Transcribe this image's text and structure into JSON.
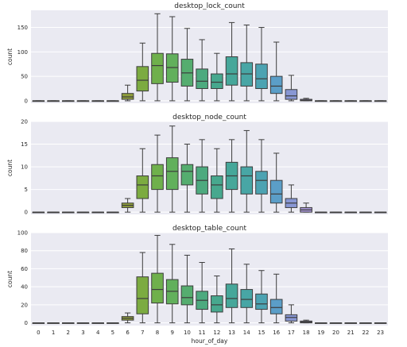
{
  "chart_data": {
    "type": "boxplot",
    "xlabel": "hour_of_day",
    "categories": [
      "0",
      "1",
      "2",
      "3",
      "4",
      "5",
      "6",
      "7",
      "8",
      "9",
      "10",
      "11",
      "12",
      "13",
      "14",
      "15",
      "16",
      "17",
      "18",
      "19",
      "20",
      "21",
      "22",
      "23"
    ],
    "palette": [
      "#d8d8d4",
      "#d8d8d4",
      "#d8d8d4",
      "#d8d8d4",
      "#d8d8d4",
      "#d8d8d4",
      "#8f9e3a",
      "#7cab41",
      "#6fb04c",
      "#62b05c",
      "#55ad6f",
      "#4daa7f",
      "#47a88e",
      "#46a79a",
      "#48a6a5",
      "#4ca3b2",
      "#5b9ec8",
      "#8897d4",
      "#a796d6",
      "#d8d8d4",
      "#d8d8d4",
      "#d8d8d4",
      "#d8d8d4",
      "#d8d8d4"
    ],
    "panels": [
      {
        "title": "desktop_lock_count",
        "ylabel": "count",
        "ylim": [
          -5,
          185
        ],
        "yticks": [
          0,
          50,
          100,
          150
        ],
        "boxes": [
          [
            0,
            0,
            0,
            0,
            0
          ],
          [
            0,
            0,
            0,
            0,
            0
          ],
          [
            0,
            0,
            0,
            0,
            0
          ],
          [
            0,
            0,
            0,
            0,
            0
          ],
          [
            0,
            0,
            0,
            0,
            0
          ],
          [
            0,
            0,
            0,
            0,
            0
          ],
          [
            0,
            3,
            8,
            15,
            32
          ],
          [
            0,
            20,
            42,
            70,
            118
          ],
          [
            0,
            35,
            72,
            97,
            178
          ],
          [
            0,
            38,
            68,
            96,
            172
          ],
          [
            0,
            30,
            57,
            85,
            148
          ],
          [
            0,
            25,
            40,
            65,
            125
          ],
          [
            0,
            25,
            38,
            55,
            97
          ],
          [
            0,
            32,
            55,
            90,
            160
          ],
          [
            0,
            30,
            55,
            78,
            155
          ],
          [
            0,
            25,
            45,
            75,
            150
          ],
          [
            0,
            15,
            30,
            50,
            120
          ],
          [
            0,
            3,
            10,
            23,
            52
          ],
          [
            0,
            0,
            1,
            3,
            5
          ],
          [
            0,
            0,
            0,
            0,
            0
          ],
          [
            0,
            0,
            0,
            0,
            0
          ],
          [
            0,
            0,
            0,
            0,
            0
          ],
          [
            0,
            0,
            0,
            0,
            0
          ],
          [
            0,
            0,
            0,
            0,
            0
          ]
        ]
      },
      {
        "title": "desktop_node_count",
        "ylabel": "count",
        "ylim": [
          -0.5,
          20
        ],
        "yticks": [
          0,
          5,
          10,
          15,
          20
        ],
        "boxes": [
          [
            0,
            0,
            0,
            0,
            0
          ],
          [
            0,
            0,
            0,
            0,
            0
          ],
          [
            0,
            0,
            0,
            0,
            0
          ],
          [
            0,
            0,
            0,
            0,
            0
          ],
          [
            0,
            0,
            0,
            0,
            0
          ],
          [
            0,
            0,
            0,
            0,
            0
          ],
          [
            0,
            1,
            1.5,
            2,
            3
          ],
          [
            0,
            3,
            6,
            8,
            14
          ],
          [
            0,
            5,
            8,
            10.5,
            17
          ],
          [
            0,
            5,
            9,
            12,
            19
          ],
          [
            0,
            6,
            9,
            10.5,
            15
          ],
          [
            0,
            4,
            7,
            10,
            16
          ],
          [
            0,
            3,
            6,
            8,
            14
          ],
          [
            0,
            5,
            8,
            11,
            16
          ],
          [
            0,
            4,
            8,
            10,
            18
          ],
          [
            0,
            4,
            7,
            9,
            16
          ],
          [
            0,
            2,
            4,
            7,
            13
          ],
          [
            0,
            1,
            2,
            3,
            6
          ],
          [
            0,
            0,
            0.5,
            1,
            2
          ],
          [
            0,
            0,
            0,
            0,
            0
          ],
          [
            0,
            0,
            0,
            0,
            0
          ],
          [
            0,
            0,
            0,
            0,
            0
          ],
          [
            0,
            0,
            0,
            0,
            0
          ],
          [
            0,
            0,
            0,
            0,
            0
          ]
        ]
      },
      {
        "title": "desktop_table_count",
        "ylabel": "count",
        "ylim": [
          -3,
          100
        ],
        "yticks": [
          0,
          20,
          40,
          60,
          80,
          100
        ],
        "boxes": [
          [
            0,
            0,
            0,
            0,
            0
          ],
          [
            0,
            0,
            0,
            0,
            0
          ],
          [
            0,
            0,
            0,
            0,
            0
          ],
          [
            0,
            0,
            0,
            0,
            0
          ],
          [
            0,
            0,
            0,
            0,
            0
          ],
          [
            0,
            0,
            0,
            0,
            0
          ],
          [
            0,
            3,
            5,
            7,
            11
          ],
          [
            0,
            10,
            27,
            51,
            78
          ],
          [
            0,
            22,
            37,
            55,
            97
          ],
          [
            0,
            21,
            35,
            48,
            87
          ],
          [
            0,
            20,
            28,
            41,
            75
          ],
          [
            0,
            15,
            25,
            35,
            67
          ],
          [
            0,
            12,
            20,
            30,
            52
          ],
          [
            0,
            17,
            27,
            43,
            82
          ],
          [
            0,
            17,
            26,
            37,
            65
          ],
          [
            0,
            15,
            21,
            32,
            58
          ],
          [
            0,
            10,
            17,
            26,
            54
          ],
          [
            0,
            2,
            6,
            9,
            20
          ],
          [
            0,
            0,
            1,
            2,
            3
          ],
          [
            0,
            0,
            0,
            0,
            0
          ],
          [
            0,
            0,
            0,
            0,
            0
          ],
          [
            0,
            0,
            0,
            0,
            0
          ],
          [
            0,
            0,
            0,
            0,
            0
          ],
          [
            0,
            0,
            0,
            0,
            0
          ]
        ]
      }
    ]
  }
}
